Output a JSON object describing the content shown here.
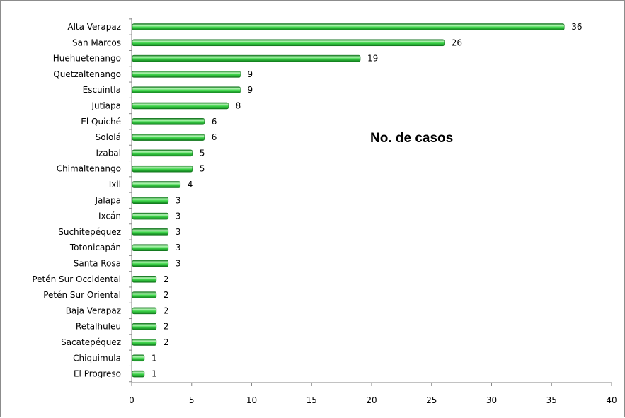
{
  "chart_data": {
    "type": "bar",
    "orientation": "horizontal",
    "title": "No. de casos",
    "categories": [
      "Alta Verapaz",
      "San Marcos",
      "Huehuetenango",
      "Quetzaltenango",
      "Escuintla",
      "Jutiapa",
      "El Quiché",
      "Sololá",
      "Izabal",
      "Chimaltenango",
      "Ixil",
      "Jalapa",
      "Ixcán",
      "Suchitepéquez",
      "Totonicapán",
      "Santa Rosa",
      "Petén Sur Occidental",
      "Petén Sur Oriental",
      "Baja Verapaz",
      "Retalhuleu",
      "Sacatepéquez",
      "Chiquimula",
      "El Progreso"
    ],
    "values": [
      36,
      26,
      19,
      9,
      9,
      8,
      6,
      6,
      5,
      5,
      4,
      3,
      3,
      3,
      3,
      3,
      2,
      2,
      2,
      2,
      2,
      1,
      1
    ],
    "xlim": [
      0,
      40
    ],
    "xticks": [
      0,
      5,
      10,
      15,
      20,
      25,
      30,
      35,
      40
    ],
    "grid": false,
    "legend": "none",
    "colors": {
      "bar_light": "#b6f5b6",
      "bar_mid": "#22c32f",
      "bar_dark": "#0e7a1a",
      "axis": "#868686"
    }
  }
}
